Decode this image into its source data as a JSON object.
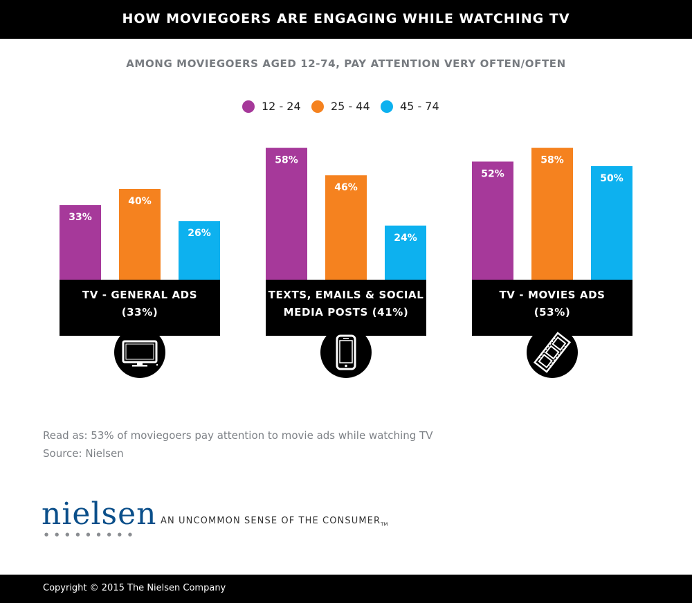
{
  "header": {
    "title": "HOW MOVIEGOERS ARE ENGAGING WHILE WATCHING TV"
  },
  "subtitle": "AMONG MOVIEGOERS AGED 12-74, PAY ATTENTION VERY OFTEN/OFTEN",
  "colors": {
    "s1": "#a6399a",
    "s2": "#f5821f",
    "s3": "#0db1ef"
  },
  "chart_data": {
    "type": "bar",
    "title": "HOW MOVIEGOERS ARE ENGAGING WHILE WATCHING TV",
    "subtitle": "AMONG MOVIEGOERS AGED 12-74, PAY ATTENTION VERY OFTEN/OFTEN",
    "categories": [
      "TV - GENERAL ADS",
      "TEXTS, EMAILS & SOCIAL MEDIA POSTS",
      "TV - MOVIES ADS"
    ],
    "category_lines": [
      [
        "TV - GENERAL ADS",
        "(33%)"
      ],
      [
        "TEXTS, EMAILS & SOCIAL",
        "MEDIA POSTS (41%)"
      ],
      [
        "TV - MOVIES ADS",
        "(53%)"
      ]
    ],
    "category_totals": [
      33,
      41,
      53
    ],
    "series": [
      {
        "name": "12 - 24",
        "values": [
          33,
          58,
          52
        ],
        "labels": [
          "33%",
          "58%",
          "52%"
        ]
      },
      {
        "name": "25 - 44",
        "values": [
          40,
          46,
          58
        ],
        "labels": [
          "40%",
          "46%",
          "58%"
        ]
      },
      {
        "name": "45 - 74",
        "values": [
          26,
          24,
          50
        ],
        "labels": [
          "26%",
          "24%",
          "50%"
        ]
      }
    ],
    "icons": [
      "tv-icon",
      "smartphone-icon",
      "film-strip-icon"
    ],
    "legend": "top-center",
    "grid": false,
    "ylim": [
      0,
      58
    ]
  },
  "notes": {
    "read_as": "Read as: 53% of moviegoers pay attention to movie ads while watching TV",
    "source": "Source: Nielsen"
  },
  "brand": {
    "name": "nielsen",
    "tagline": "AN UNCOMMON SENSE OF THE CONSUMER",
    "tm": "TM"
  },
  "footer": {
    "copyright": "Copyright © 2015 The Nielsen Company"
  }
}
